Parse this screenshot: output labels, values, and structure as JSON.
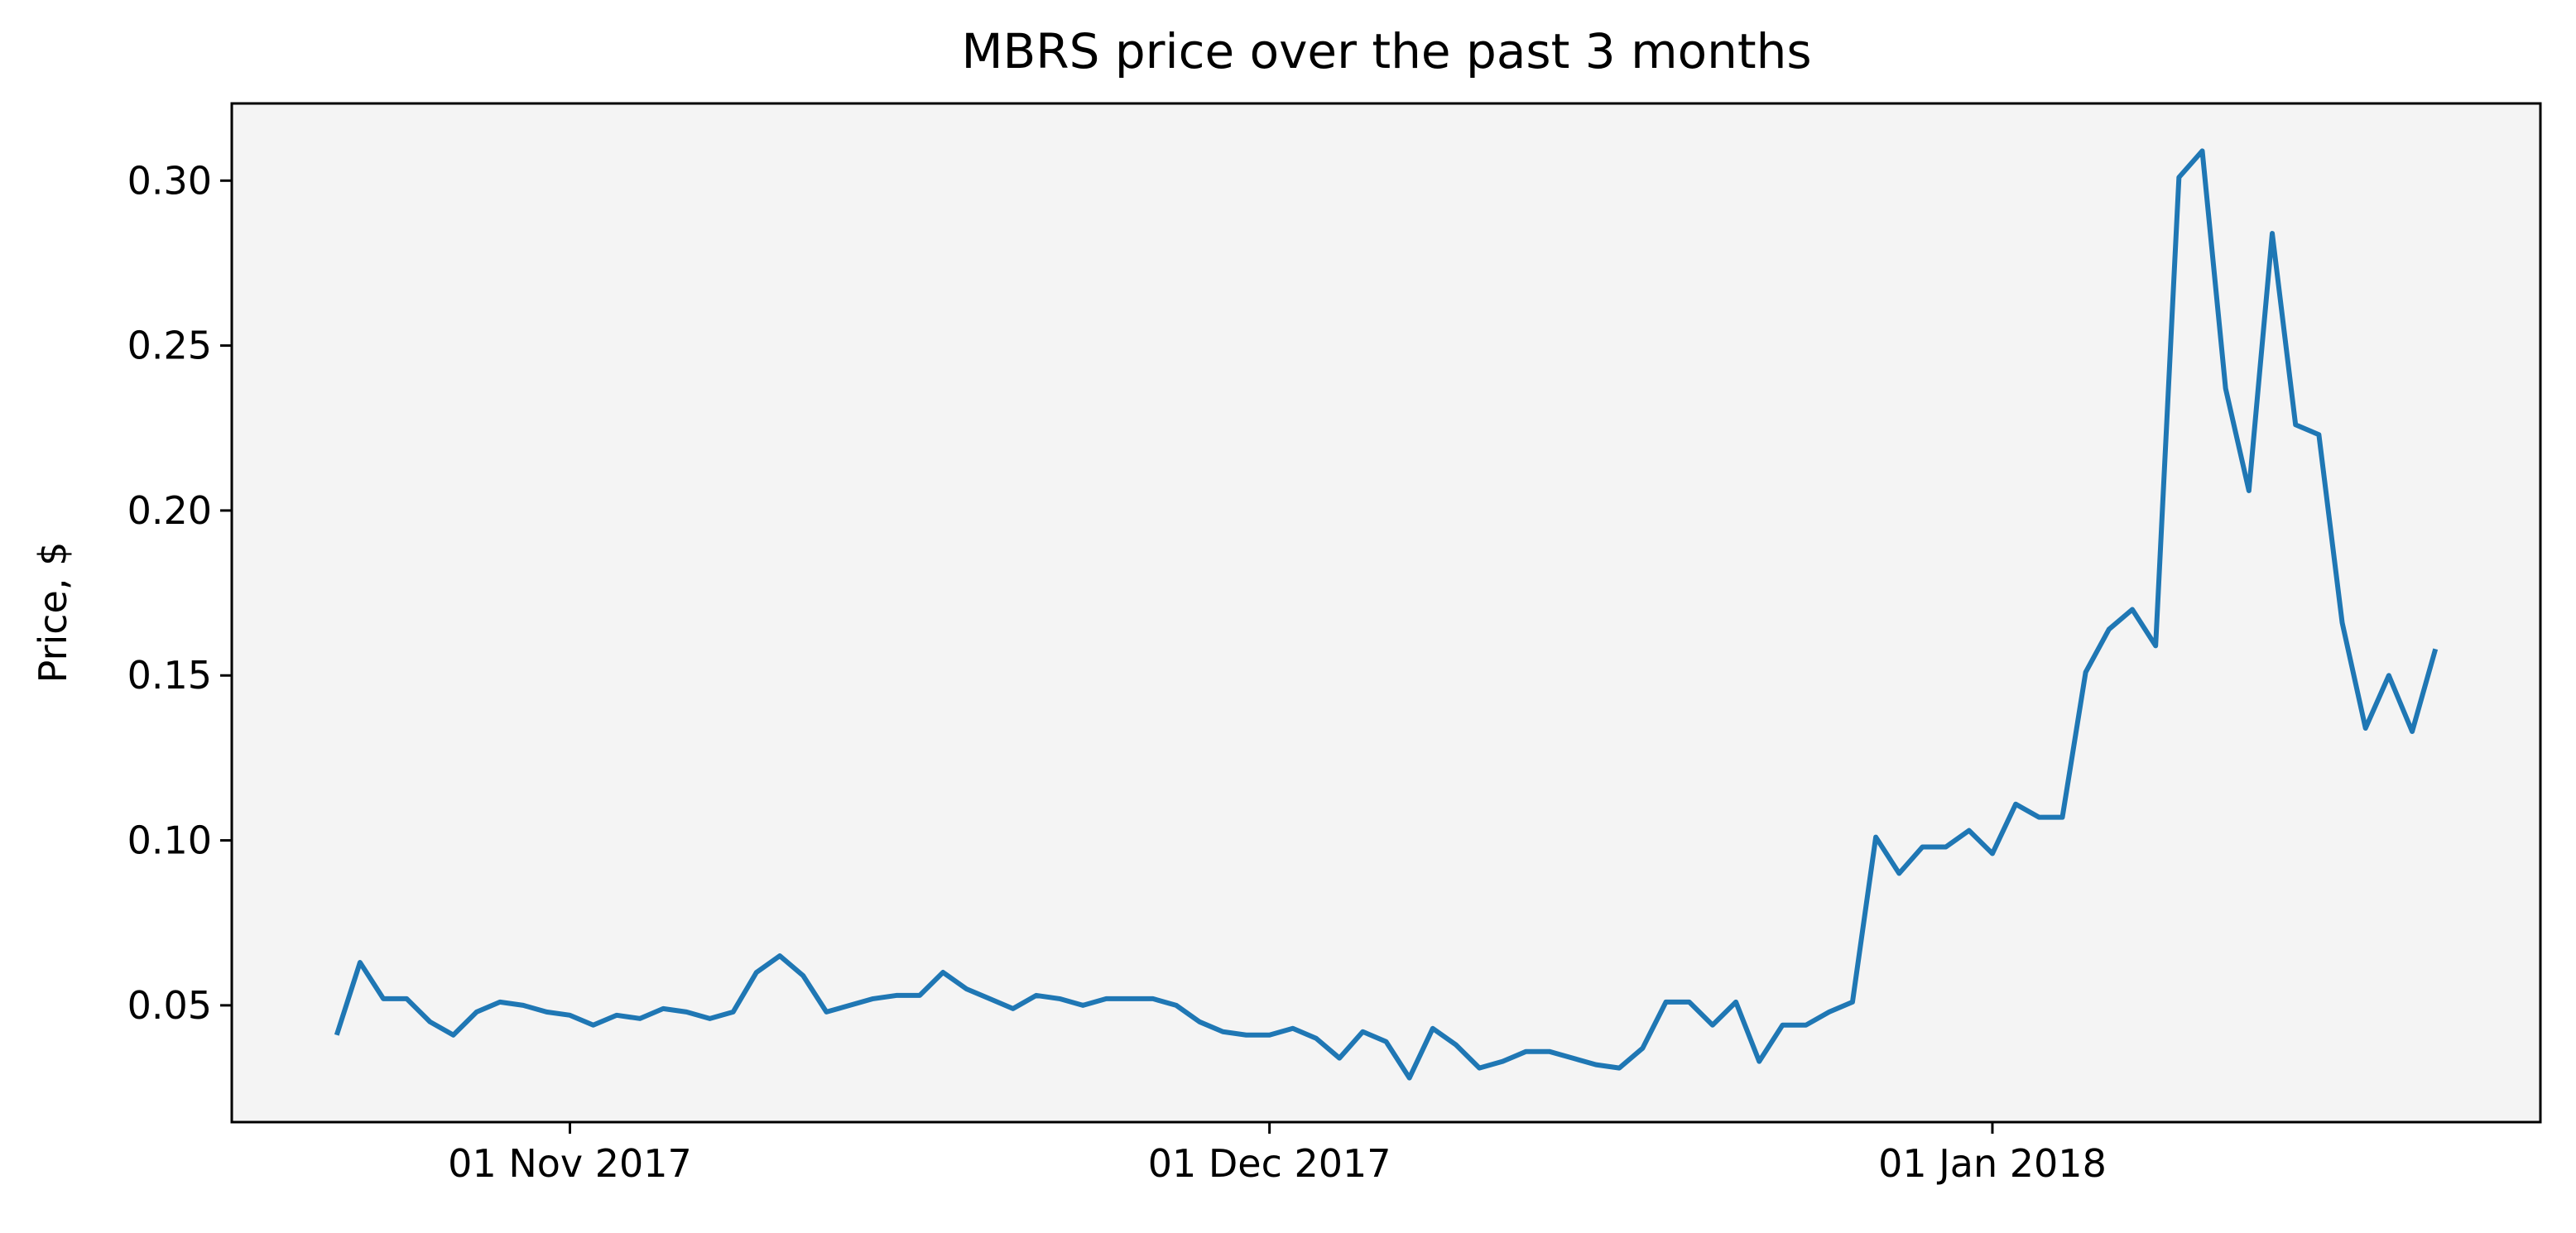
{
  "chart_data": {
    "type": "line",
    "title": "MBRS price over the past 3 months",
    "ylabel": "Price, $",
    "x": [
      "2017-10-22",
      "2017-10-23",
      "2017-10-24",
      "2017-10-25",
      "2017-10-26",
      "2017-10-27",
      "2017-10-28",
      "2017-10-29",
      "2017-10-30",
      "2017-10-31",
      "2017-11-01",
      "2017-11-02",
      "2017-11-03",
      "2017-11-04",
      "2017-11-05",
      "2017-11-06",
      "2017-11-07",
      "2017-11-08",
      "2017-11-09",
      "2017-11-10",
      "2017-11-11",
      "2017-11-12",
      "2017-11-13",
      "2017-11-14",
      "2017-11-15",
      "2017-11-16",
      "2017-11-17",
      "2017-11-18",
      "2017-11-19",
      "2017-11-20",
      "2017-11-21",
      "2017-11-22",
      "2017-11-23",
      "2017-11-24",
      "2017-11-25",
      "2017-11-26",
      "2017-11-27",
      "2017-11-28",
      "2017-11-29",
      "2017-11-30",
      "2017-12-01",
      "2017-12-02",
      "2017-12-03",
      "2017-12-04",
      "2017-12-05",
      "2017-12-06",
      "2017-12-07",
      "2017-12-08",
      "2017-12-09",
      "2017-12-10",
      "2017-12-11",
      "2017-12-12",
      "2017-12-13",
      "2017-12-14",
      "2017-12-15",
      "2017-12-16",
      "2017-12-17",
      "2017-12-18",
      "2017-12-19",
      "2017-12-20",
      "2017-12-21",
      "2017-12-22",
      "2017-12-23",
      "2017-12-24",
      "2017-12-25",
      "2017-12-26",
      "2017-12-27",
      "2017-12-28",
      "2017-12-29",
      "2017-12-30",
      "2017-12-31",
      "2018-01-01",
      "2018-01-02",
      "2018-01-03",
      "2018-01-04",
      "2018-01-05",
      "2018-01-06",
      "2018-01-07",
      "2018-01-08",
      "2018-01-09",
      "2018-01-10",
      "2018-01-11",
      "2018-01-12",
      "2018-01-13",
      "2018-01-14",
      "2018-01-15",
      "2018-01-16",
      "2018-01-17",
      "2018-01-18",
      "2018-01-19",
      "2018-01-20"
    ],
    "series": [
      {
        "name": "MBRS",
        "color": "#1f77b4",
        "values": [
          0.041,
          0.063,
          0.052,
          0.052,
          0.045,
          0.041,
          0.048,
          0.051,
          0.05,
          0.048,
          0.047,
          0.044,
          0.047,
          0.046,
          0.049,
          0.048,
          0.046,
          0.048,
          0.06,
          0.065,
          0.059,
          0.048,
          0.05,
          0.052,
          0.053,
          0.053,
          0.06,
          0.055,
          0.052,
          0.049,
          0.053,
          0.052,
          0.05,
          0.052,
          0.052,
          0.052,
          0.05,
          0.045,
          0.042,
          0.041,
          0.041,
          0.043,
          0.04,
          0.034,
          0.042,
          0.039,
          0.028,
          0.043,
          0.038,
          0.031,
          0.033,
          0.036,
          0.036,
          0.034,
          0.032,
          0.031,
          0.037,
          0.051,
          0.051,
          0.044,
          0.051,
          0.033,
          0.044,
          0.044,
          0.048,
          0.051,
          0.101,
          0.09,
          0.098,
          0.098,
          0.103,
          0.096,
          0.111,
          0.107,
          0.107,
          0.151,
          0.164,
          0.17,
          0.159,
          0.301,
          0.309,
          0.237,
          0.206,
          0.284,
          0.226,
          0.223,
          0.166,
          0.134,
          0.15,
          0.133,
          0.158
        ]
      }
    ],
    "xlim": [
      "2017-10-17T12:00:00Z",
      "2018-01-24T12:00:00Z"
    ],
    "xticks": [
      {
        "value": "2017-11-01",
        "label": "01 Nov 2017"
      },
      {
        "value": "2017-12-01",
        "label": "01 Dec 2017"
      },
      {
        "value": "2018-01-01",
        "label": "01 Jan 2018"
      }
    ],
    "ylim": [
      0.0146,
      0.3234
    ],
    "yticks": [
      0.05,
      {
        "value": 0.1,
        "label": "0.10"
      },
      0.15,
      {
        "value": 0.2,
        "label": "0.20"
      },
      0.25,
      {
        "value": 0.3,
        "label": "0.30"
      }
    ],
    "grid": false,
    "background": "#f4f4f4"
  }
}
